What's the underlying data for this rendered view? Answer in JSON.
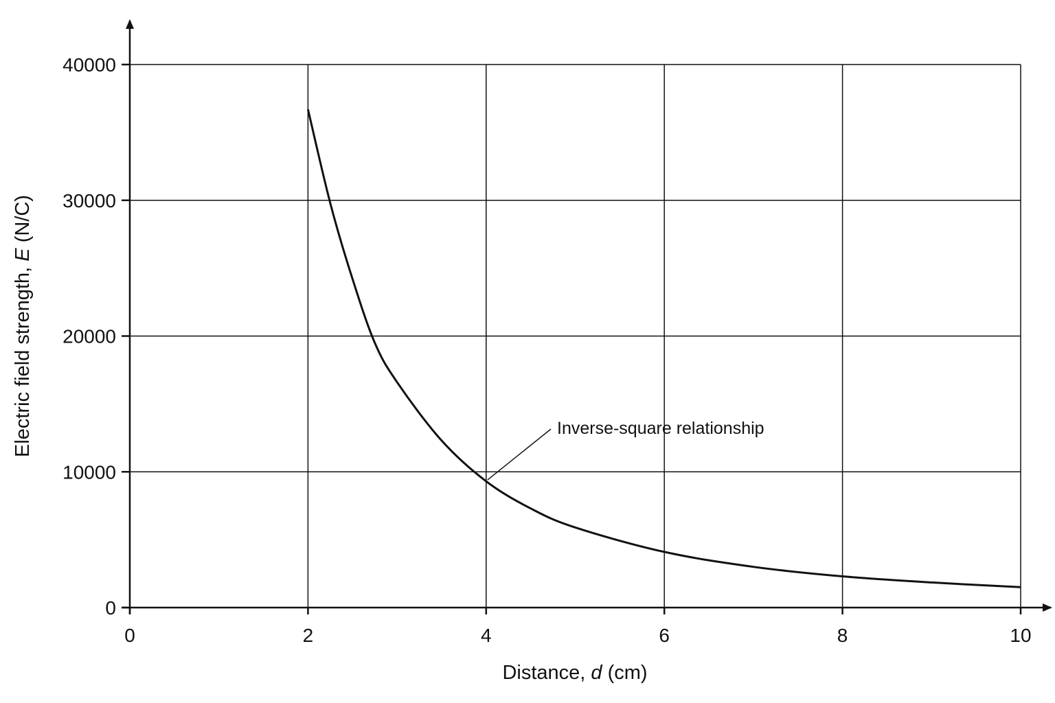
{
  "chart_data": {
    "type": "line",
    "title": "",
    "xlabel": "Distance, ",
    "xlabel_var": "d",
    "xlabel_unit": " (cm)",
    "ylabel": "Electric field strength, ",
    "ylabel_var": "E",
    "ylabel_unit": " (N/C)",
    "xlim": [
      0,
      10
    ],
    "ylim": [
      0,
      40000
    ],
    "x_ticks": [
      0,
      2,
      4,
      6,
      8,
      10
    ],
    "x_tick_labels": [
      "0",
      "2",
      "4",
      "6",
      "8",
      "10"
    ],
    "y_ticks": [
      0,
      10000,
      20000,
      30000,
      40000
    ],
    "y_tick_labels": [
      "0",
      "10000",
      "20000",
      "30000",
      "40000"
    ],
    "grid": true,
    "series": [
      {
        "x": [
          2.0,
          2.25,
          2.5,
          2.75,
          3.0,
          3.5,
          4.0,
          4.5,
          5.0,
          6.0,
          7.0,
          8.0,
          9.0,
          10.0
        ],
        "y": [
          36700,
          29800,
          24200,
          19500,
          16600,
          12300,
          9300,
          7300,
          5900,
          4100,
          3000,
          2300,
          1850,
          1500
        ]
      }
    ],
    "annotations": [
      {
        "text": "Inverse-square relationship",
        "x": 4.0,
        "y": 9300
      }
    ]
  }
}
